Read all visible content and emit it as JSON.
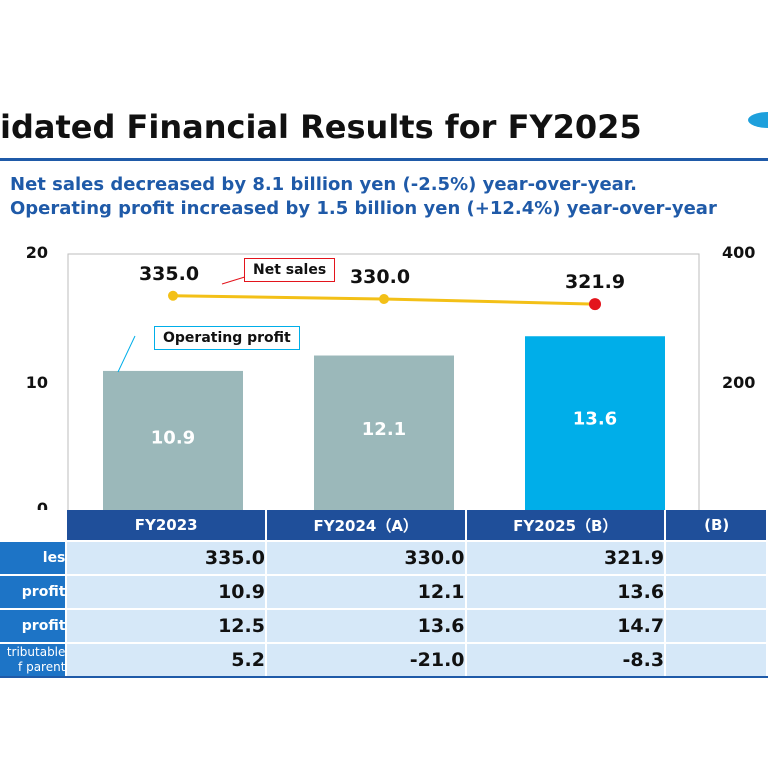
{
  "title": "idated Financial Results for FY2025",
  "subtitle1": "Net sales decreased by 8.1 billion yen (-2.5%) year-over-year.",
  "subtitle2": "Operating profit increased by 1.5 billion yen (+12.4%) year-over-year",
  "colors": {
    "accent": "#1f5aa8",
    "prior_bar": "#9bb8ba",
    "current_bar": "#00aee9",
    "line": "#f3c017",
    "highlight_point": "#e3141c",
    "table_header": "#1f4f9a",
    "row_label": "#1d74c6",
    "table_cell": "#d6e8f8"
  },
  "chart_data": {
    "type": "bar",
    "categories": [
      "FY2023",
      "FY2024",
      "FY2025"
    ],
    "series": [
      {
        "name": "Operating profit",
        "type": "bar",
        "values": [
          10.9,
          12.1,
          13.6
        ],
        "axis": "left"
      },
      {
        "name": "Net sales",
        "type": "line",
        "values": [
          335.0,
          330.0,
          321.9
        ],
        "axis": "right"
      }
    ],
    "left_axis": {
      "range": [
        0,
        20
      ],
      "ticks": [
        "0",
        "10",
        "20"
      ]
    },
    "right_axis": {
      "range": [
        0,
        400
      ],
      "ticks": [
        "200",
        "400"
      ]
    },
    "bar_labels": [
      "10.9",
      "12.1",
      "13.6"
    ],
    "point_labels": [
      "335.0",
      "330.0",
      "321.9"
    ],
    "callouts": {
      "net_sales": "Net sales",
      "operating_profit": "Operating profit"
    }
  },
  "table": {
    "headers": [
      "FY2023",
      "FY2024（A）",
      "FY2025（B）",
      "(B)"
    ],
    "rows": [
      {
        "label": "les",
        "values": [
          "335.0",
          "330.0",
          "321.9"
        ]
      },
      {
        "label": "profit",
        "values": [
          "10.9",
          "12.1",
          "13.6"
        ]
      },
      {
        "label": "profit",
        "values": [
          "12.5",
          "13.6",
          "14.7"
        ]
      },
      {
        "label1": "tributable",
        "label2": "f parent",
        "values": [
          "5.2",
          "-21.0",
          "-8.3"
        ]
      }
    ]
  }
}
